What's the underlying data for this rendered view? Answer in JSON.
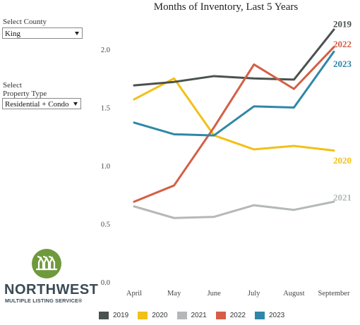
{
  "filters": {
    "county_label": "Select County",
    "county_value": "King",
    "type_label_line1": "Select",
    "type_label_line2": "Property Type",
    "type_value": "Residential + Condo"
  },
  "logo": {
    "word": "NORTHWEST",
    "sub": "MULTIPLE LISTING SERVICE®"
  },
  "chart_data": {
    "type": "line",
    "title": "Months of Inventory, Last 5 Years",
    "xlabel": "",
    "ylabel": "",
    "categories": [
      "April",
      "May",
      "June",
      "July",
      "August",
      "September"
    ],
    "ylim": [
      0,
      2.35
    ],
    "yticks": [
      "0.0",
      "0.5",
      "1.0",
      "1.5",
      "2.0"
    ],
    "grid": false,
    "legend_position": "bottom",
    "series": [
      {
        "name": "2019",
        "color": "#4a524e",
        "values": [
          1.69,
          1.72,
          1.77,
          1.75,
          1.74,
          2.17
        ]
      },
      {
        "name": "2020",
        "color": "#f2c018",
        "values": [
          1.57,
          1.75,
          1.26,
          1.14,
          1.17,
          1.13
        ]
      },
      {
        "name": "2021",
        "color": "#b5b8b8",
        "values": [
          0.65,
          0.55,
          0.56,
          0.66,
          0.62,
          0.69
        ]
      },
      {
        "name": "2022",
        "color": "#d45f45",
        "values": [
          0.69,
          0.83,
          1.33,
          1.87,
          1.66,
          2.02
        ]
      },
      {
        "name": "2023",
        "color": "#2f87a8",
        "values": [
          1.37,
          1.27,
          1.26,
          1.51,
          1.5,
          1.98
        ]
      }
    ]
  }
}
